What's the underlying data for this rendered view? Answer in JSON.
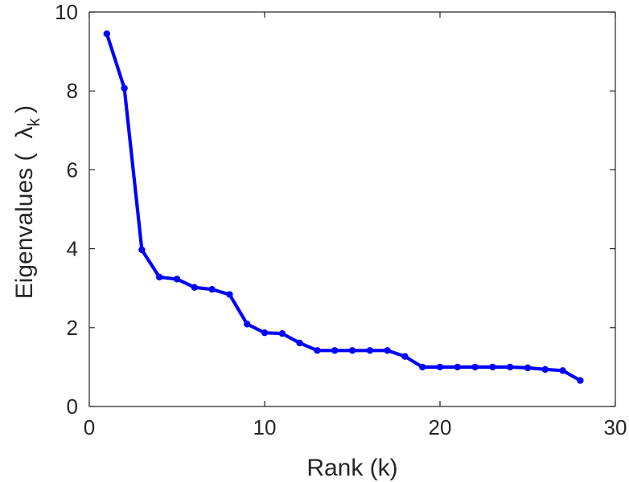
{
  "chart_data": {
    "type": "line",
    "xlabel": "Rank (k)",
    "ylabel_parts": {
      "prefix": "Eigenvalues (",
      "symbol": "λ",
      "subscript": "k",
      "suffix": ")"
    },
    "xlim": [
      0,
      30
    ],
    "ylim": [
      0,
      10
    ],
    "xticks": [
      0,
      10,
      20,
      30
    ],
    "yticks": [
      0,
      2,
      4,
      6,
      8,
      10
    ],
    "grid": false,
    "box": true,
    "series": [
      {
        "color": "#0000ff",
        "marker": "circle",
        "x": [
          1,
          2,
          3,
          4,
          5,
          6,
          7,
          8,
          9,
          10,
          11,
          12,
          13,
          14,
          15,
          16,
          17,
          18,
          19,
          20,
          21,
          22,
          23,
          24,
          25,
          26,
          27,
          28
        ],
        "y": [
          9.45,
          8.07,
          3.97,
          3.28,
          3.23,
          3.02,
          2.97,
          2.84,
          2.09,
          1.87,
          1.85,
          1.61,
          1.42,
          1.42,
          1.42,
          1.42,
          1.42,
          1.27,
          1.0,
          1.0,
          1.0,
          1.0,
          1.0,
          1.0,
          0.98,
          0.94,
          0.91,
          0.66
        ]
      }
    ]
  }
}
